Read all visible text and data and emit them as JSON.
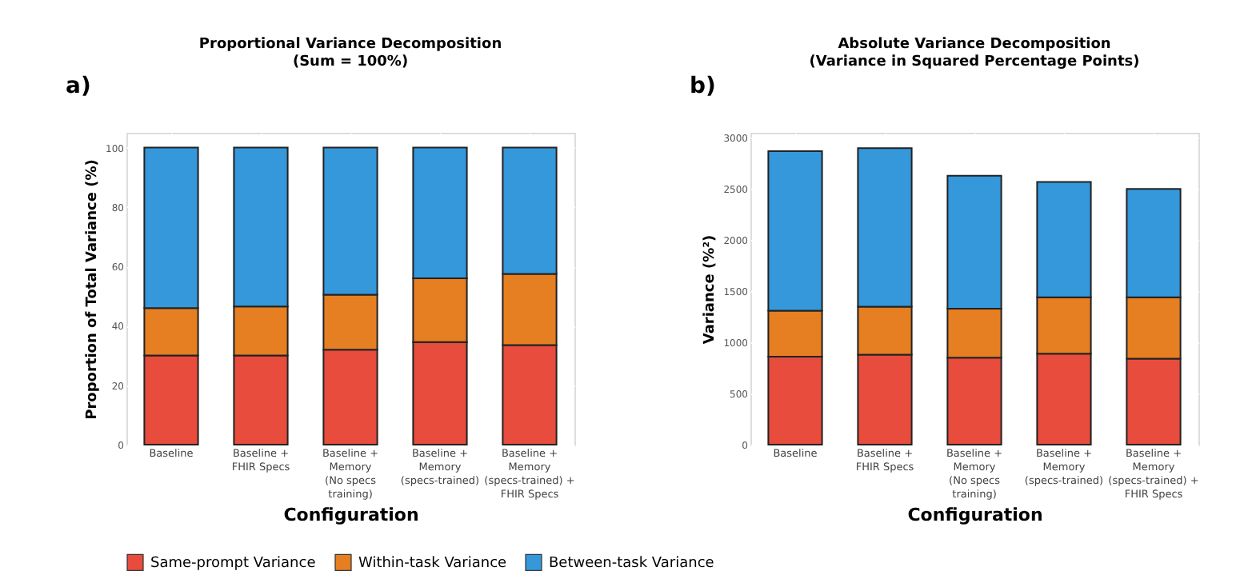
{
  "chart_data": [
    {
      "type": "bar",
      "stacked": true,
      "title": "Proportional Variance Decomposition\n(Sum = 100%)",
      "xlabel": "Configuration",
      "ylabel": "Proportion of Total Variance (%)",
      "annotations": [
        "a)"
      ],
      "categories": [
        "Baseline",
        "Baseline +\nFHIR Specs",
        "Baseline +\nMemory\n(No specs\ntraining)",
        "Baseline +\nMemory\n(specs-trained)",
        "Baseline +\nMemory\n(specs-trained) +\nFHIR Specs"
      ],
      "series": [
        {
          "name": "Same-prompt Variance",
          "color": "#e74c3c",
          "values": [
            30,
            30,
            32,
            34.5,
            33.5
          ]
        },
        {
          "name": "Within-task Variance",
          "color": "#e67e22",
          "values": [
            16,
            16.5,
            18.5,
            21.5,
            24
          ]
        },
        {
          "name": "Between-task Variance",
          "color": "#3498db",
          "values": [
            54,
            53.5,
            49.5,
            44,
            42.5
          ]
        }
      ],
      "ylim": [
        0,
        105
      ],
      "yticks": [
        0,
        20,
        40,
        60,
        80,
        100
      ],
      "grid": true,
      "legend": "bottom"
    },
    {
      "type": "bar",
      "stacked": true,
      "title": "Absolute Variance Decomposition\n(Variance in Squared Percentage Points)",
      "xlabel": "Configuration",
      "ylabel": "Variance (%²)",
      "annotations": [
        "b)"
      ],
      "categories": [
        "Baseline",
        "Baseline +\nFHIR Specs",
        "Baseline +\nMemory\n(No specs\ntraining)",
        "Baseline +\nMemory\n(specs-trained)",
        "Baseline +\nMemory\n(specs-trained) +\nFHIR Specs"
      ],
      "series": [
        {
          "name": "Same-prompt Variance",
          "color": "#e74c3c",
          "values": [
            860,
            880,
            850,
            890,
            840
          ]
        },
        {
          "name": "Within-task Variance",
          "color": "#e67e22",
          "values": [
            450,
            470,
            480,
            550,
            600
          ]
        },
        {
          "name": "Between-task Variance",
          "color": "#3498db",
          "values": [
            1560,
            1550,
            1300,
            1130,
            1060
          ]
        }
      ],
      "ylim": [
        0,
        3050
      ],
      "yticks": [
        0,
        500,
        1000,
        1500,
        2000,
        2500,
        3000
      ],
      "grid": true,
      "legend": "bottom"
    }
  ]
}
